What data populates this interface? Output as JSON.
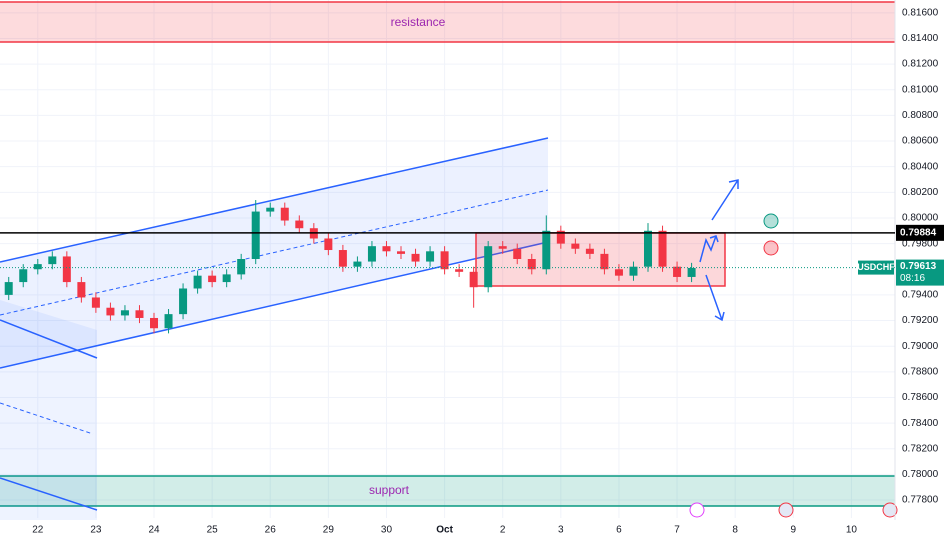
{
  "chart_data": {
    "type": "candlestick",
    "symbol": "USDCHF",
    "countdown": "08:16",
    "annotations": {
      "resistance": "resistance",
      "support": "support"
    },
    "levels": {
      "horizontal": 0.79884,
      "last": 0.79613
    },
    "xlim": [
      -0.65,
      14.75
    ],
    "xticks": [
      {
        "value": 0,
        "label": "22"
      },
      {
        "value": 1,
        "label": "23"
      },
      {
        "value": 2,
        "label": "24"
      },
      {
        "value": 3,
        "label": "25"
      },
      {
        "value": 4,
        "label": "26"
      },
      {
        "value": 5,
        "label": "29"
      },
      {
        "value": 6,
        "label": "30"
      },
      {
        "value": 7,
        "label": "Oct"
      },
      {
        "value": 8,
        "label": "2"
      },
      {
        "value": 9,
        "label": "3"
      },
      {
        "value": 10,
        "label": "6"
      },
      {
        "value": 11,
        "label": "7"
      },
      {
        "value": 12,
        "label": "8"
      },
      {
        "value": 13,
        "label": "9"
      },
      {
        "value": 14,
        "label": "10"
      }
    ],
    "ylim": [
      0.7766,
      0.817
    ],
    "yticks": [
      {
        "value": 0.816,
        "label": "0.81600"
      },
      {
        "value": 0.814,
        "label": "0.81400"
      },
      {
        "value": 0.812,
        "label": "0.81200"
      },
      {
        "value": 0.81,
        "label": "0.81000"
      },
      {
        "value": 0.808,
        "label": "0.80800"
      },
      {
        "value": 0.806,
        "label": "0.80600"
      },
      {
        "value": 0.804,
        "label": "0.80400"
      },
      {
        "value": 0.802,
        "label": "0.80200"
      },
      {
        "value": 0.8,
        "label": "0.80000"
      },
      {
        "value": 0.798,
        "label": "0.79800"
      },
      {
        "value": 0.794,
        "label": "0.79400"
      },
      {
        "value": 0.792,
        "label": "0.79200"
      },
      {
        "value": 0.79,
        "label": "0.79000"
      },
      {
        "value": 0.788,
        "label": "0.78800"
      },
      {
        "value": 0.786,
        "label": "0.78600"
      },
      {
        "value": 0.784,
        "label": "0.78400"
      },
      {
        "value": 0.782,
        "label": "0.78200"
      },
      {
        "value": 0.78,
        "label": "0.78000"
      },
      {
        "value": 0.778,
        "label": "0.77800"
      }
    ],
    "grid": true,
    "up_color": "#089981",
    "down_color": "#f23645",
    "x": [
      -0.5,
      -0.25,
      0,
      0.25,
      0.5,
      0.75,
      1,
      1.25,
      1.5,
      1.75,
      2,
      2.25,
      2.5,
      2.75,
      3,
      3.25,
      3.5,
      3.75,
      4,
      4.25,
      4.5,
      4.75,
      5,
      5.25,
      5.5,
      5.75,
      6,
      6.25,
      6.5,
      6.75,
      7,
      7.25,
      7.5,
      7.75,
      8,
      8.25,
      8.5,
      8.75,
      9,
      9.25,
      9.5,
      9.75,
      10,
      10.25,
      10.5,
      10.75,
      11,
      11.25
    ],
    "open": [
      0.794,
      0.795,
      0.796,
      0.7964,
      0.797,
      0.795,
      0.7938,
      0.793,
      0.7924,
      0.7928,
      0.7922,
      0.7914,
      0.7925,
      0.7945,
      0.7955,
      0.795,
      0.7956,
      0.7968,
      0.8005,
      0.8008,
      0.7998,
      0.7992,
      0.7984,
      0.7975,
      0.7962,
      0.7966,
      0.7978,
      0.7974,
      0.7972,
      0.7966,
      0.7974,
      0.796,
      0.7958,
      0.7946,
      0.7978,
      0.7976,
      0.7968,
      0.796,
      0.799,
      0.798,
      0.7976,
      0.7972,
      0.796,
      0.7955,
      0.7962,
      0.799,
      0.7962,
      0.7954
    ],
    "high": [
      0.7954,
      0.7964,
      0.7968,
      0.7974,
      0.7974,
      0.7954,
      0.7942,
      0.7934,
      0.7932,
      0.7932,
      0.7926,
      0.7929,
      0.7949,
      0.7959,
      0.7959,
      0.796,
      0.7972,
      0.8014,
      0.8012,
      0.8012,
      0.8002,
      0.7996,
      0.7988,
      0.7979,
      0.797,
      0.7982,
      0.7982,
      0.7978,
      0.7976,
      0.7978,
      0.7978,
      0.7964,
      0.7962,
      0.7982,
      0.7982,
      0.798,
      0.7972,
      0.8002,
      0.7994,
      0.7984,
      0.798,
      0.7976,
      0.7964,
      0.7966,
      0.7996,
      0.7994,
      0.7966,
      0.7965
    ],
    "low": [
      0.7936,
      0.7946,
      0.7956,
      0.796,
      0.7946,
      0.7934,
      0.7926,
      0.792,
      0.792,
      0.7918,
      0.791,
      0.791,
      0.7921,
      0.7941,
      0.7946,
      0.7946,
      0.7952,
      0.7964,
      0.8001,
      0.7994,
      0.7988,
      0.798,
      0.7971,
      0.7958,
      0.7958,
      0.7962,
      0.797,
      0.7968,
      0.7962,
      0.7962,
      0.7956,
      0.7954,
      0.793,
      0.7942,
      0.7972,
      0.7964,
      0.7956,
      0.7956,
      0.7976,
      0.7972,
      0.7968,
      0.7956,
      0.7951,
      0.7951,
      0.7958,
      0.7958,
      0.795,
      0.795
    ],
    "close": [
      0.795,
      0.796,
      0.7964,
      0.797,
      0.795,
      0.7938,
      0.793,
      0.7924,
      0.7928,
      0.7922,
      0.7914,
      0.7925,
      0.7945,
      0.7955,
      0.795,
      0.7956,
      0.7968,
      0.8005,
      0.8008,
      0.7998,
      0.7992,
      0.7984,
      0.7975,
      0.7962,
      0.7966,
      0.7978,
      0.7974,
      0.7972,
      0.7966,
      0.7974,
      0.796,
      0.7958,
      0.7946,
      0.7978,
      0.7976,
      0.7968,
      0.796,
      0.799,
      0.798,
      0.7976,
      0.7972,
      0.796,
      0.7955,
      0.7962,
      0.799,
      0.7962,
      0.7954,
      0.7961
    ]
  }
}
